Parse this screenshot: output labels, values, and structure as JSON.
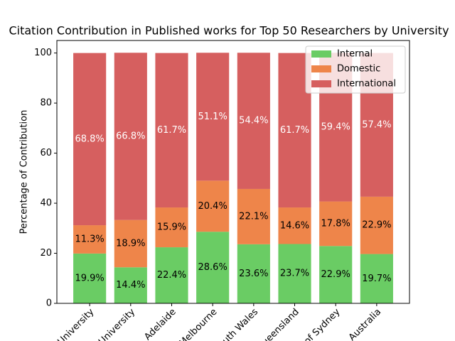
{
  "chart_data": {
    "type": "stacked_bar",
    "title": "Citation Contribution in Published works for Top 50 Researchers by University",
    "y_label": "Percentage of Contribution",
    "categories": [
      "University",
      "University",
      "Adelaide",
      "Melbourne",
      "South Wales",
      "Queensland",
      "of Sydney",
      "Australia"
    ],
    "series": [
      {
        "name": "Internal",
        "color": "#6acc64",
        "label_color": "#000000",
        "values": [
          19.9,
          14.4,
          22.4,
          28.6,
          23.6,
          23.7,
          22.9,
          19.7
        ],
        "value_labels": [
          "19.9%",
          "14.4%",
          "22.4%",
          "28.6%",
          "23.6%",
          "23.7%",
          "22.9%",
          "19.7%"
        ]
      },
      {
        "name": "Domestic",
        "color": "#ee854a",
        "label_color": "#000000",
        "values": [
          11.3,
          18.9,
          15.9,
          20.4,
          22.1,
          14.6,
          17.8,
          22.9
        ],
        "value_labels": [
          "11.3%",
          "18.9%",
          "15.9%",
          "20.4%",
          "22.1%",
          "14.6%",
          "17.8%",
          "22.9%"
        ]
      },
      {
        "name": "International",
        "color": "#d65f5f",
        "label_color": "#ffffff",
        "values": [
          68.8,
          66.8,
          61.7,
          51.1,
          54.4,
          61.7,
          59.4,
          57.4
        ],
        "value_labels": [
          "68.8%",
          "66.8%",
          "61.7%",
          "51.1%",
          "54.4%",
          "61.7%",
          "59.4%",
          "57.4%"
        ]
      }
    ],
    "ylim": [
      0,
      105
    ],
    "yticks": [
      0,
      20,
      40,
      60,
      80,
      100
    ],
    "legend": "upper right"
  }
}
